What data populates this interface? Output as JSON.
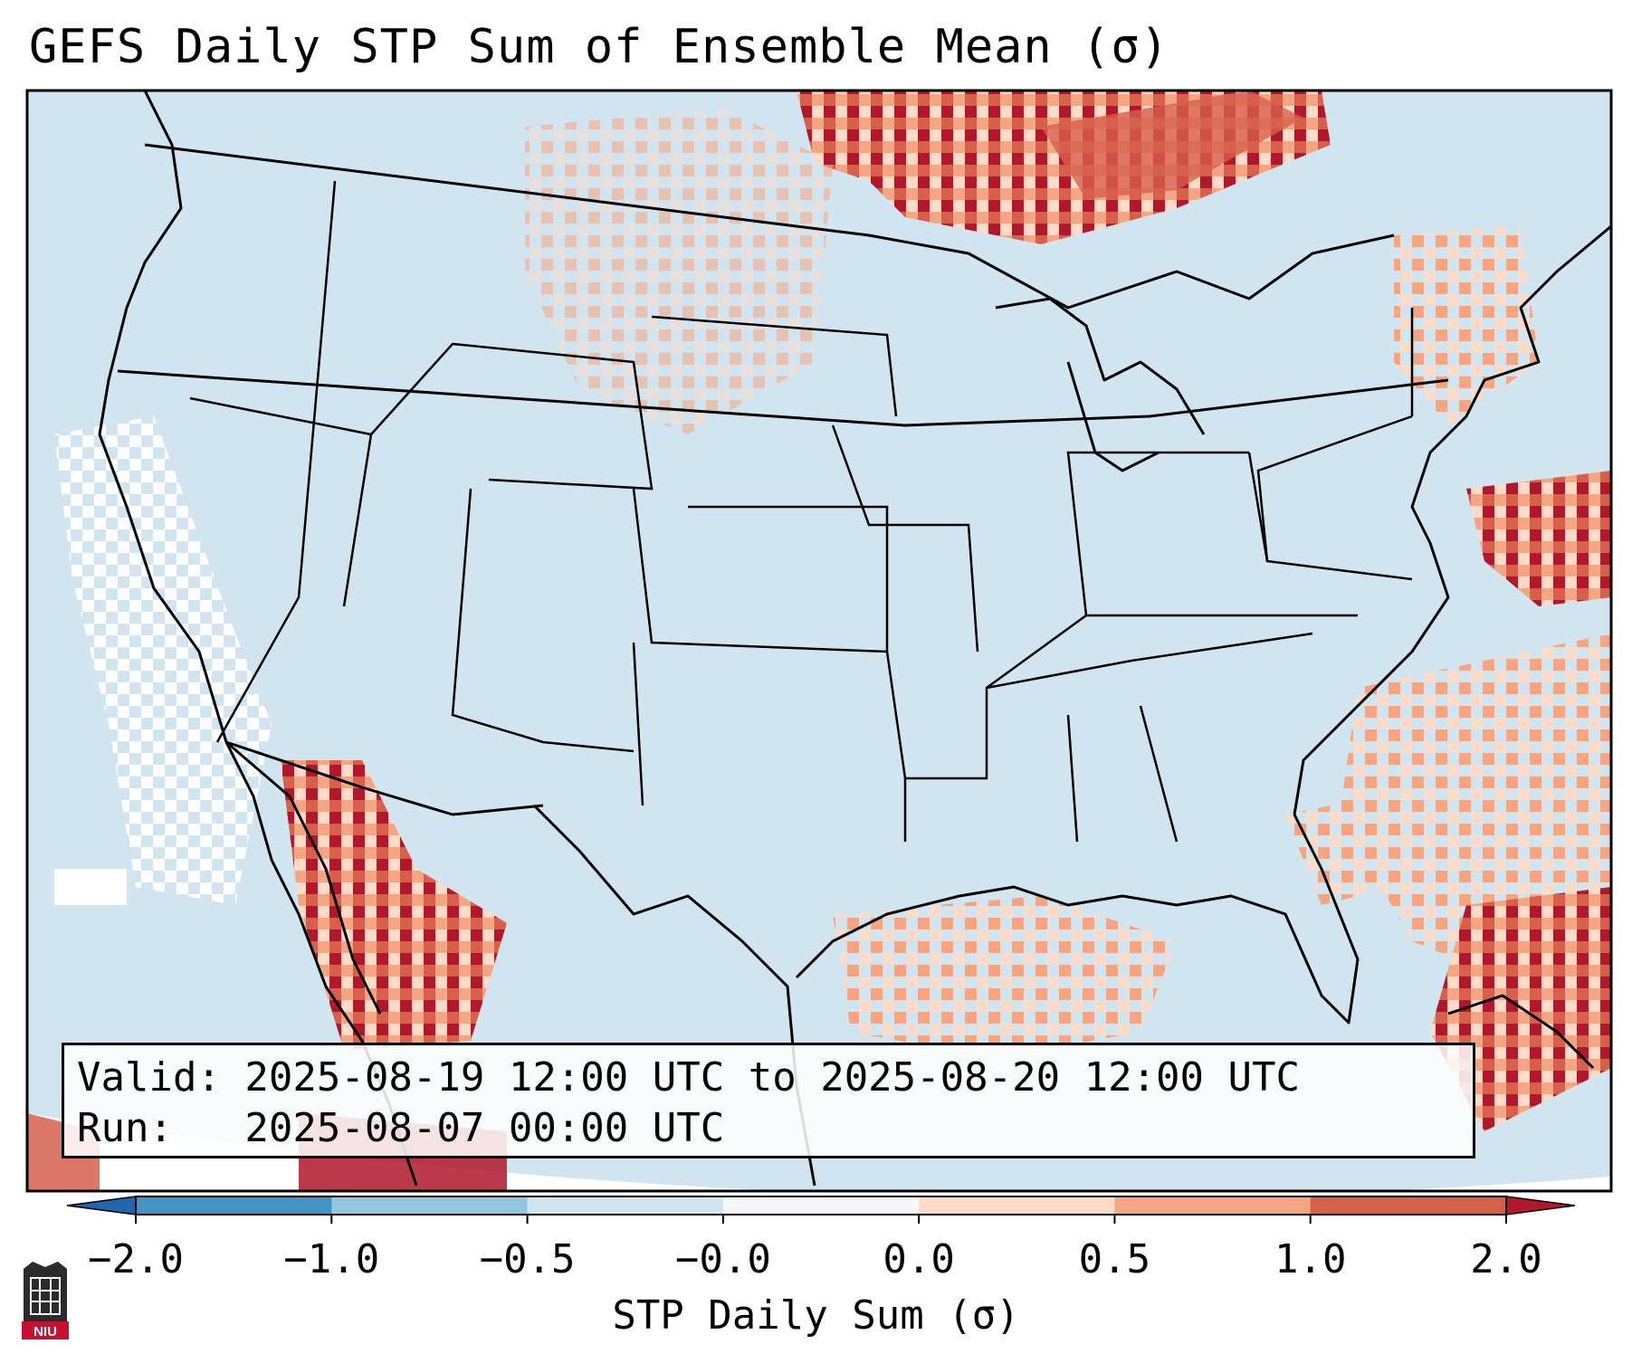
{
  "title": "GEFS Daily STP Sum of Ensemble Mean (σ)",
  "annotation": {
    "valid_line": "Valid: 2025-08-19 12:00 UTC to 2025-08-20 12:00 UTC",
    "run_line": "Run:   2025-08-07 00:00 UTC"
  },
  "colorbar": {
    "label": "STP Daily Sum (σ)",
    "ticks": [
      "−2.0",
      "−1.0",
      "−0.5",
      "−0.0",
      "0.0",
      "0.5",
      "1.0",
      "2.0"
    ],
    "bin_colors": [
      "#4393c3",
      "#92c5de",
      "#d1e5f0",
      "#f7f7f7",
      "#fddbc7",
      "#f4a582",
      "#d6604d"
    ],
    "under_color": "#2166ac",
    "over_color": "#b2182b"
  },
  "map": {
    "background_color": "#d1e5f0",
    "region": "Contiguous United States, southern Canada, northern Mexico, Gulf of Mexico and western Atlantic",
    "anomaly_areas": [
      {
        "name": "southern-ontario-quebec",
        "level": 1.0
      },
      {
        "name": "atlantic-offshore-east",
        "level": 1.0
      },
      {
        "name": "southeast-coast-atlantic",
        "level": 0.5
      },
      {
        "name": "northwest-gulf-of-mexico",
        "level": 0.5
      },
      {
        "name": "sierra-madre-occidental",
        "level": 2.0
      },
      {
        "name": "northern-new-england",
        "level": 0.5
      },
      {
        "name": "northern-plains",
        "level": 0.5
      },
      {
        "name": "california-pacific-offshore",
        "level": -0.0
      },
      {
        "name": "cuba-bahamas",
        "level": 1.0
      }
    ]
  },
  "logo": {
    "text": "NIU"
  }
}
